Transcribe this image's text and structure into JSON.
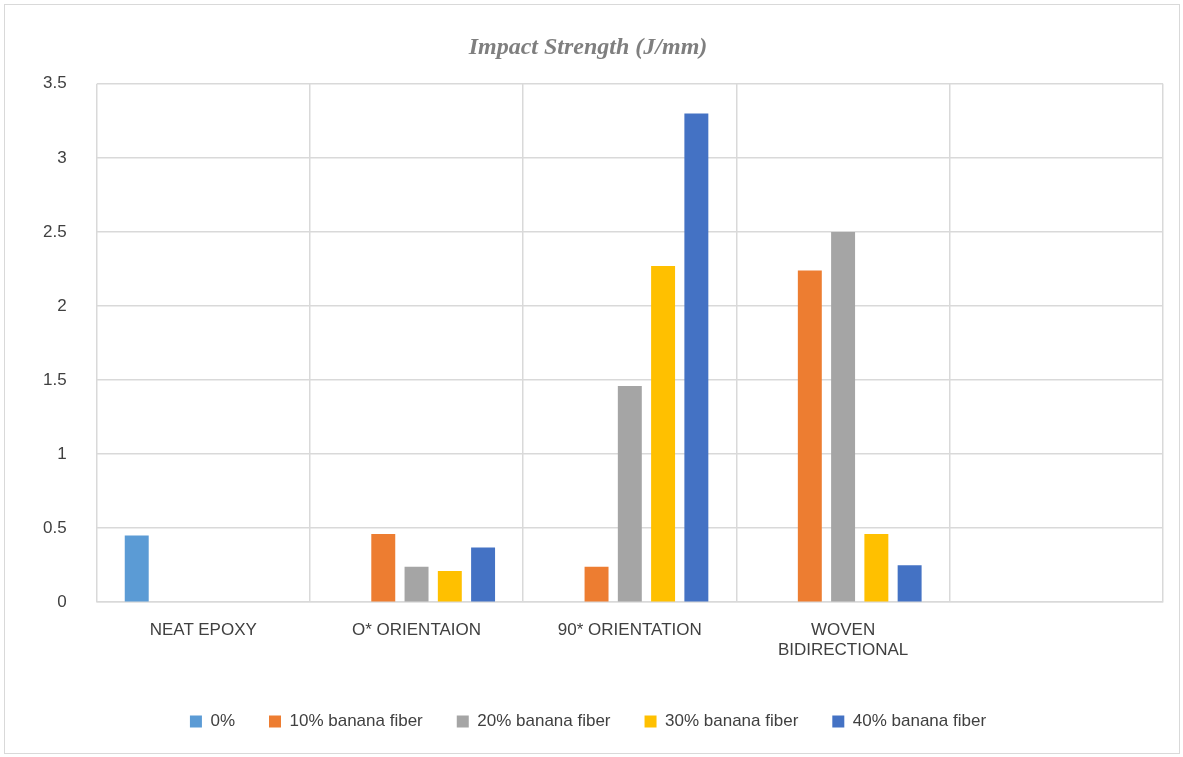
{
  "chart_data": {
    "type": "bar",
    "title": "Impact Strength (J/mm)",
    "categories": [
      "NEAT EPOXY",
      "O* ORIENTAION",
      "90* ORIENTATION",
      "WOVEN BIDIRECTIONAL",
      null
    ],
    "series": [
      {
        "name": "0%",
        "color": "#5b9bd5",
        "values": [
          0.45,
          null,
          null,
          null,
          null
        ]
      },
      {
        "name": "10% banana fiber",
        "color": "#ed7d31",
        "values": [
          null,
          0.46,
          0.24,
          2.24,
          null
        ]
      },
      {
        "name": "20% banana fiber",
        "color": "#a5a5a5",
        "values": [
          null,
          0.24,
          1.46,
          2.5,
          null
        ]
      },
      {
        "name": "30% banana fiber",
        "color": "#ffc000",
        "values": [
          null,
          0.21,
          2.27,
          0.46,
          null
        ]
      },
      {
        "name": "40% banana fiber",
        "color": "#4472c4",
        "values": [
          null,
          0.37,
          3.3,
          0.25,
          null
        ]
      }
    ],
    "ylim": [
      0,
      3.5
    ],
    "yticks": [
      0,
      0.5,
      1,
      1.5,
      2,
      2.5,
      3,
      3.5
    ],
    "grid": true,
    "legend": "bottom"
  }
}
